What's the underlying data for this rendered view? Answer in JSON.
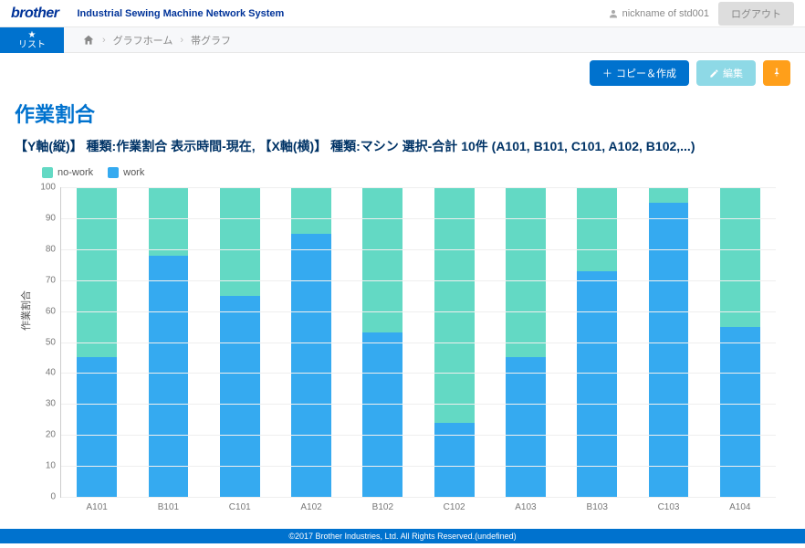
{
  "header": {
    "brand": "brother",
    "system_title": "Industrial Sewing Machine Network System",
    "user_name": "nickname of std001",
    "logout_label": "ログアウト"
  },
  "nav": {
    "list_tab_label": "リスト",
    "breadcrumb_home": "",
    "breadcrumb_1": "グラフホーム",
    "breadcrumb_2": "帯グラフ"
  },
  "actions": {
    "copy_create": "コピー＆作成",
    "edit": "編集"
  },
  "page": {
    "title": "作業割合",
    "subtitle": "【Y軸(縦)】 種類:作業割合 表示時間-現在,  【X軸(横)】 種類:マシン 選択-合計 10件 (A101, B101, C101, A102, B102,...)"
  },
  "chart": {
    "type": "stacked-bar",
    "y_label": "作業割合",
    "ylim": [
      0,
      100
    ],
    "ytick_step": 10,
    "grid_color": "#eeeeee",
    "axis_color": "#cccccc",
    "background_color": "#ffffff",
    "legend": [
      {
        "key": "no-work",
        "label": "no-work",
        "color": "#63d9c4"
      },
      {
        "key": "work",
        "label": "work",
        "color": "#35aaf0"
      }
    ],
    "categories": [
      "A101",
      "B101",
      "C101",
      "A102",
      "B102",
      "C102",
      "A103",
      "B103",
      "C103",
      "A104"
    ],
    "series": {
      "work": [
        45,
        78,
        65,
        85,
        53,
        24,
        45,
        73,
        95,
        55
      ],
      "nowork": [
        55,
        22,
        35,
        15,
        47,
        76,
        55,
        27,
        5,
        45
      ]
    },
    "label_fontsize": 10
  },
  "footer": {
    "copyright": "©2017 Brother Industries, Ltd. All Rights Reserved.(undefined)"
  }
}
